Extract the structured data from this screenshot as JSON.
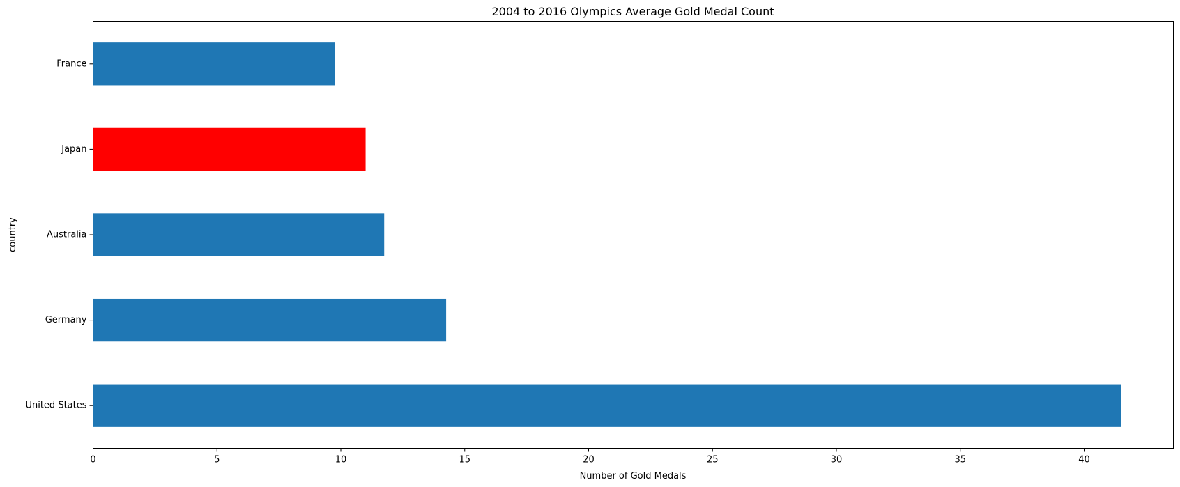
{
  "chart_data": {
    "type": "bar",
    "orientation": "horizontal",
    "title": "2004 to 2016 Olympics Average Gold Medal Count",
    "xlabel": "Number of Gold Medals",
    "ylabel": "country",
    "categories": [
      "United States",
      "Germany",
      "Australia",
      "Japan",
      "France"
    ],
    "values": [
      41.5,
      14.25,
      11.75,
      11.0,
      9.75
    ],
    "colors": [
      "#1f77b4",
      "#1f77b4",
      "#1f77b4",
      "#ff0000",
      "#1f77b4"
    ],
    "xlim": [
      0,
      43.6
    ],
    "xticks": [
      0,
      5,
      10,
      15,
      20,
      25,
      30,
      35,
      40
    ],
    "grid": false,
    "legend": "none"
  }
}
